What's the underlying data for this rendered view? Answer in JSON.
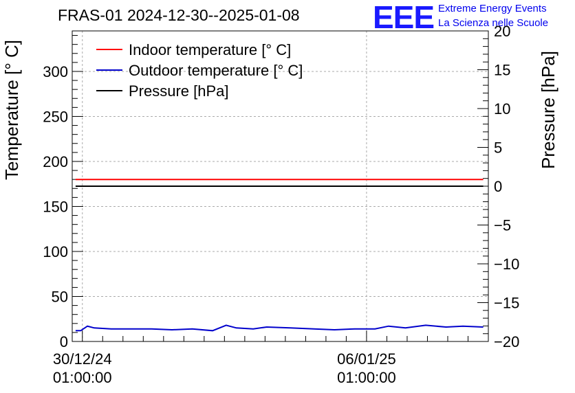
{
  "header": {
    "title": "FRAS-01 2024-12-30--2025-01-08",
    "logo_text": "EEE",
    "logo_line1": "Extreme Energy Events",
    "logo_line2": "La Scienza nelle Scuole"
  },
  "chart_data": {
    "type": "line",
    "x_ticks": [
      {
        "date": "2024-12-30T01:00:00",
        "label_line1": "30/12/24",
        "label_line2": "01:00:00"
      },
      {
        "date": "2025-01-06T01:00:00",
        "label_line1": "06/01/25",
        "label_line2": "01:00:00"
      }
    ],
    "xlim": [
      "2024-12-29T19:00:00",
      "2025-01-09T01:00:00"
    ],
    "ylabel": "Temperature [° C]",
    "ylim": [
      0,
      345
    ],
    "yticks": [
      0,
      50,
      100,
      150,
      200,
      250,
      300
    ],
    "y2label": "Pressure [hPa]",
    "y2lim": [
      -20,
      20
    ],
    "y2ticks": [
      -20,
      -15,
      -10,
      -5,
      0,
      5,
      10,
      15,
      20
    ],
    "grid": true,
    "legend_position": "top-left",
    "series": [
      {
        "name": "Indoor temperature [° C]",
        "color": "#ff0000",
        "axis": "left",
        "x": [
          "2024-12-29T21:00:00",
          "2025-01-08T22:00:00"
        ],
        "values": [
          180,
          180
        ]
      },
      {
        "name": "Outdoor temperature [° C]",
        "color": "#0000cc",
        "axis": "left",
        "x": [
          "2024-12-29T21:00:00",
          "2024-12-30T00:00:00",
          "2024-12-30T04:00:00",
          "2024-12-30T08:00:00",
          "2024-12-30T18:00:00",
          "2024-12-31T06:00:00",
          "2024-12-31T18:00:00",
          "2025-01-01T06:00:00",
          "2025-01-01T18:00:00",
          "2025-01-02T06:00:00",
          "2025-01-02T14:00:00",
          "2025-01-02T20:00:00",
          "2025-01-03T06:00:00",
          "2025-01-03T14:00:00",
          "2025-01-04T04:00:00",
          "2025-01-04T18:00:00",
          "2025-01-05T06:00:00",
          "2025-01-05T18:00:00",
          "2025-01-06T06:00:00",
          "2025-01-06T14:00:00",
          "2025-01-07T00:00:00",
          "2025-01-07T12:00:00",
          "2025-01-08T00:00:00",
          "2025-01-08T10:00:00",
          "2025-01-08T22:00:00"
        ],
        "values": [
          12,
          12,
          17,
          15,
          14,
          14,
          14,
          13,
          14,
          12,
          18,
          15,
          14,
          16,
          15,
          14,
          13,
          14,
          14,
          17,
          15,
          18,
          16,
          17,
          16
        ]
      },
      {
        "name": "Pressure [hPa]",
        "color": "#000000",
        "axis": "right",
        "x": [
          "2024-12-29T21:00:00",
          "2025-01-08T22:00:00"
        ],
        "values": [
          0,
          0
        ]
      }
    ]
  }
}
